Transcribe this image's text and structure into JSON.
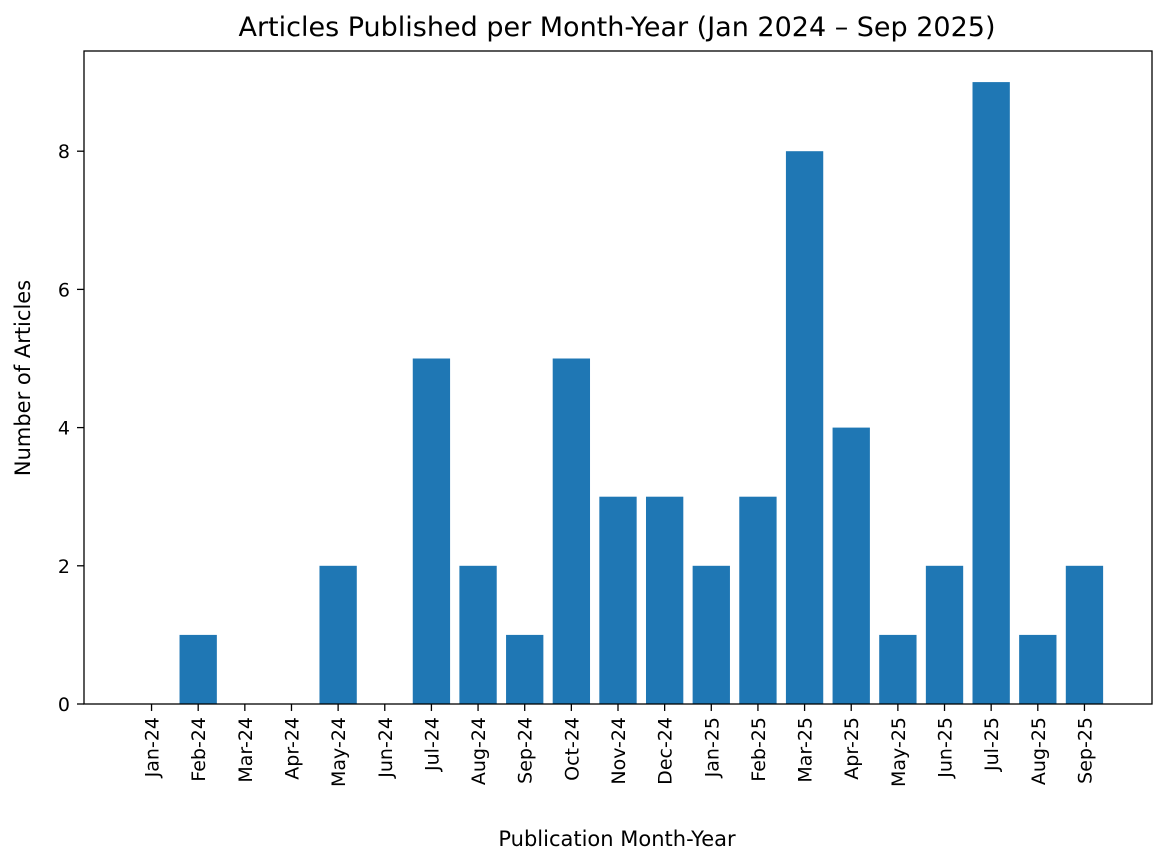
{
  "chart_data": {
    "type": "bar",
    "title": "Articles Published per Month-Year (Jan 2024 – Sep 2025)",
    "xlabel": "Publication Month-Year",
    "ylabel": "Number of Articles",
    "categories": [
      "Jan-24",
      "Feb-24",
      "Mar-24",
      "Apr-24",
      "May-24",
      "Jun-24",
      "Jul-24",
      "Aug-24",
      "Sep-24",
      "Oct-24",
      "Nov-24",
      "Dec-24",
      "Jan-25",
      "Feb-25",
      "Mar-25",
      "Apr-25",
      "May-25",
      "Jun-25",
      "Jul-25",
      "Aug-25",
      "Sep-25"
    ],
    "values": [
      0,
      1,
      0,
      0,
      2,
      0,
      5,
      2,
      1,
      5,
      3,
      3,
      2,
      3,
      8,
      4,
      1,
      2,
      9,
      1,
      2
    ],
    "ylim": [
      0,
      9.45
    ],
    "yticks": [
      0,
      2,
      4,
      6,
      8
    ],
    "grid": false,
    "bar_color": "#1f77b4"
  }
}
